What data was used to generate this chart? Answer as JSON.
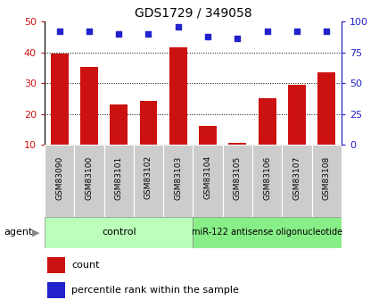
{
  "title": "GDS1729 / 349058",
  "samples": [
    "GSM83090",
    "GSM83100",
    "GSM83101",
    "GSM83102",
    "GSM83103",
    "GSM83104",
    "GSM83105",
    "GSM83106",
    "GSM83107",
    "GSM83108"
  ],
  "counts": [
    39.5,
    35.2,
    23.0,
    24.2,
    41.5,
    16.0,
    10.5,
    25.2,
    29.5,
    33.5
  ],
  "percentile_ranks": [
    92,
    92,
    90,
    90,
    96,
    88,
    86,
    92,
    92,
    92
  ],
  "bar_color": "#cc1111",
  "dot_color": "#2222cc",
  "ylim_left": [
    10,
    50
  ],
  "ylim_right": [
    0,
    100
  ],
  "yticks_left": [
    10,
    20,
    30,
    40,
    50
  ],
  "yticks_right": [
    0,
    25,
    50,
    75,
    100
  ],
  "grid_lines": [
    20,
    30,
    40
  ],
  "control_label": "control",
  "treatment_label": "miR-122 antisense oligonucleotide",
  "agent_label": "agent",
  "control_color": "#bbffbb",
  "treatment_color": "#88ee88",
  "legend_count": "count",
  "legend_pct": "percentile rank within the sample",
  "n_control": 5,
  "tick_color_left": "#cc1111",
  "tick_color_right": "#2222cc",
  "xtick_bg_color": "#cccccc",
  "bg_color": "#ffffff"
}
